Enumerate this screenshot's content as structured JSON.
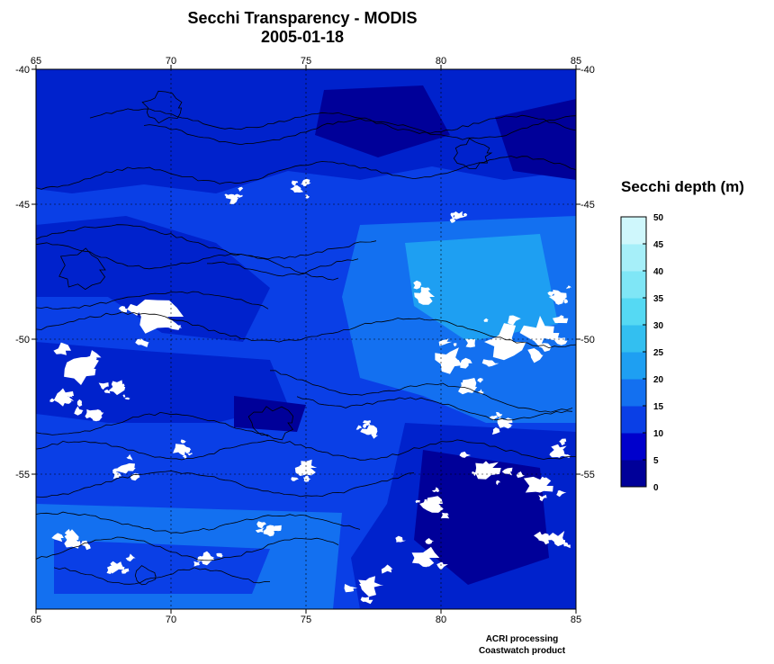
{
  "title": "Secchi Transparency - MODIS",
  "date": "2005-01-18",
  "lon_ticks": [
    "65",
    "70",
    "75",
    "80",
    "85"
  ],
  "lat_ticks": [
    "-40",
    "-45",
    "-50",
    "-55"
  ],
  "map_extent": {
    "lon": [
      65,
      85
    ],
    "lat": [
      -60,
      -40
    ]
  },
  "colorbar": {
    "title": "Secchi depth (m)",
    "ticks": [
      "0",
      "5",
      "10",
      "15",
      "20",
      "25",
      "30",
      "35",
      "40",
      "45",
      "50"
    ],
    "colors": [
      "#000099",
      "#0000cc",
      "#0a3fe6",
      "#1370f0",
      "#1e9ff2",
      "#33bff0",
      "#55d9f3",
      "#7fe6f6",
      "#a6eff9",
      "#cff7fc"
    ]
  },
  "map_colors": {
    "deep": "#000099",
    "dark": "#0022cc",
    "mid": "#0a3fe6",
    "light": "#1370f0",
    "lighter": "#1e9ff2",
    "cloud": "#ffffff",
    "contour": "#000000"
  },
  "credits": {
    "line1": "ACRI processing",
    "line2": "Coastwatch product"
  }
}
